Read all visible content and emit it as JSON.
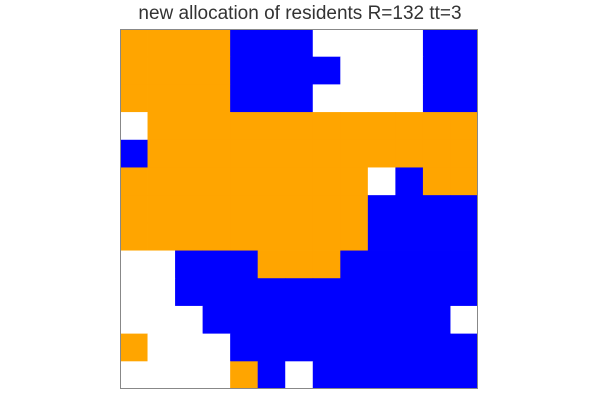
{
  "chart_data": {
    "type": "heatmap",
    "title": "new allocation of residents R=132 tt=3",
    "xlabel": "",
    "ylabel": "",
    "grid": false,
    "legend": "none",
    "rows": 13,
    "cols": 13,
    "colors": {
      "0": "#ffffff",
      "1": "#ffa500",
      "2": "#0000ff"
    },
    "cells": [
      [
        1,
        1,
        1,
        1,
        2,
        2,
        2,
        0,
        0,
        0,
        0,
        2,
        2
      ],
      [
        1,
        1,
        1,
        1,
        2,
        2,
        2,
        2,
        0,
        0,
        0,
        2,
        2
      ],
      [
        1,
        1,
        1,
        1,
        2,
        2,
        2,
        0,
        0,
        0,
        0,
        2,
        2
      ],
      [
        0,
        1,
        1,
        1,
        1,
        1,
        1,
        1,
        1,
        1,
        1,
        1,
        1
      ],
      [
        2,
        1,
        1,
        1,
        1,
        1,
        1,
        1,
        1,
        1,
        1,
        1,
        1
      ],
      [
        1,
        1,
        1,
        1,
        1,
        1,
        1,
        1,
        1,
        0,
        2,
        1,
        1
      ],
      [
        1,
        1,
        1,
        1,
        1,
        1,
        1,
        1,
        1,
        2,
        2,
        2,
        2
      ],
      [
        1,
        1,
        1,
        1,
        1,
        1,
        1,
        1,
        1,
        2,
        2,
        2,
        2
      ],
      [
        0,
        0,
        2,
        2,
        2,
        1,
        1,
        1,
        2,
        2,
        2,
        2,
        2
      ],
      [
        0,
        0,
        2,
        2,
        2,
        2,
        2,
        2,
        2,
        2,
        2,
        2,
        2
      ],
      [
        0,
        0,
        0,
        2,
        2,
        2,
        2,
        2,
        2,
        2,
        2,
        2,
        0
      ],
      [
        1,
        0,
        0,
        0,
        2,
        2,
        2,
        2,
        2,
        2,
        2,
        2,
        2
      ],
      [
        0,
        0,
        0,
        0,
        1,
        2,
        0,
        2,
        2,
        2,
        2,
        2,
        2
      ]
    ]
  }
}
